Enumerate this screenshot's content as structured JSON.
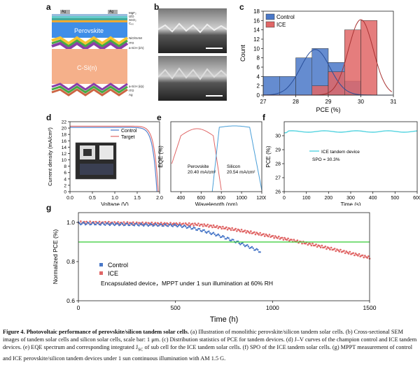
{
  "panels": {
    "a": {
      "letter": "a",
      "layers_top": [
        "MgF₂",
        "IZO",
        "SnO₂",
        "C₆₀"
      ],
      "perovskite": "Perovskite",
      "layers_mid": [
        "NiO/SAM",
        "ITO",
        "a-Si:H (i/n)"
      ],
      "csi": "C-Si(n)",
      "layers_bot": [
        "a-Si:H (i/p)",
        "ITO",
        "Ag"
      ],
      "contact": "Ag"
    },
    "b": {
      "letter": "b"
    },
    "c": {
      "letter": "c"
    },
    "d": {
      "letter": "d"
    },
    "e": {
      "letter": "e"
    },
    "f": {
      "letter": "f"
    },
    "g": {
      "letter": "g"
    }
  },
  "chart_data": [
    {
      "id": "c",
      "type": "bar",
      "title": "",
      "xlabel": "PCE (%)",
      "ylabel": "Count",
      "xlim": [
        27,
        31
      ],
      "ylim": [
        0,
        18
      ],
      "xticks": [
        "27",
        "28",
        "29",
        "30",
        "31"
      ],
      "yticks": [
        "0",
        "2",
        "4",
        "6",
        "8",
        "10",
        "12",
        "14",
        "16",
        "18"
      ],
      "bin_edges": [
        27,
        27.5,
        28,
        28.5,
        29,
        29.5,
        30,
        30.5
      ],
      "series": [
        {
          "name": "Control",
          "color": "#4a78c8",
          "values": [
            4,
            4,
            8,
            10,
            7,
            3,
            0
          ]
        },
        {
          "name": "ICE",
          "color": "#e06666",
          "values": [
            0,
            0,
            0,
            2,
            5,
            14,
            16
          ]
        }
      ],
      "fits": [
        {
          "name": "Control",
          "mean": 28.6,
          "sd": 0.45,
          "peak": 9.8
        },
        {
          "name": "ICE",
          "mean": 30.0,
          "sd": 0.38,
          "peak": 16.2
        }
      ]
    },
    {
      "id": "d",
      "type": "line",
      "xlabel": "Voltage (V)",
      "ylabel": "Current density (mA/cm²)",
      "xlim": [
        0,
        2.0
      ],
      "ylim": [
        0,
        22
      ],
      "xticks": [
        "0.0",
        "0.5",
        "1.0",
        "1.5",
        "2.0"
      ],
      "yticks": [
        "0",
        "2",
        "4",
        "6",
        "8",
        "10",
        "12",
        "14",
        "16",
        "18",
        "20",
        "22"
      ],
      "series": [
        {
          "name": "Control",
          "color": "#4a78c8",
          "jsc": 20.2,
          "voc": 1.94
        },
        {
          "name": "Target",
          "color": "#e06666",
          "jsc": 20.6,
          "voc": 1.97
        }
      ]
    },
    {
      "id": "e",
      "type": "line",
      "xlabel": "Wavelength (nm)",
      "ylabel": "EQE (%)",
      "xlim": [
        300,
        1200
      ],
      "ylim": [
        0,
        100
      ],
      "xticks": [
        "400",
        "600",
        "800",
        "1000",
        "1200"
      ],
      "series": [
        {
          "name": "Perovskite",
          "color": "#e06666"
        },
        {
          "name": "Silicon",
          "color": "#4a9fd8"
        }
      ],
      "annotations": [
        "Perovskite",
        "20.40 mA/cm²",
        "Silicon",
        "20.54 mA/cm²"
      ]
    },
    {
      "id": "f",
      "type": "line",
      "xlabel": "Time (s)",
      "ylabel": "PCE (%)",
      "xlim": [
        0,
        600
      ],
      "ylim": [
        26,
        31
      ],
      "xticks": [
        "0",
        "100",
        "200",
        "300",
        "400",
        "500",
        "600"
      ],
      "yticks": [
        "26",
        "27",
        "28",
        "29",
        "30"
      ],
      "series": [
        {
          "name": "ICE tandem device",
          "color": "#55d4e0",
          "value": 30.3
        }
      ],
      "annotations": [
        "SPO = 30.3%"
      ]
    },
    {
      "id": "g",
      "type": "scatter",
      "xlabel": "Time (h)",
      "ylabel": "Normalized PCE (%)",
      "xlim": [
        0,
        1500
      ],
      "ylim": [
        0.6,
        1.05
      ],
      "xticks": [
        "0",
        "500",
        "1000",
        "1500"
      ],
      "yticks": [
        "0.6",
        "0.8",
        "1.0"
      ],
      "series": [
        {
          "name": "Control",
          "color": "#4a78c8",
          "end_time": 940,
          "end_value": 0.85
        },
        {
          "name": "ICE",
          "color": "#e06666",
          "end_time": 1500,
          "end_value": 0.82
        }
      ],
      "reference_line": {
        "value": 0.9,
        "color": "#33cc33"
      },
      "annotations": [
        "Encapsulated device，MPPT under 1 sun illumination at 60% RH"
      ]
    }
  ],
  "caption": {
    "label": "Figure 4.",
    "title": "Photovoltaic performance of perovskite/silicon tandem solar cells.",
    "body": "(a) Illustration of monolithic perovskite/silicon tandem solar cells. (b) Cross-sectional SEM images of tandem solar cells and silicon solar cells, scale bar: 1 μm. (c) Distribution statistics of PCE for tandem devices. (d) J–V curves of the champion control and ICE tandem devices. (e) EQE spectrum and corresponding integrated J",
    "sub": "SC",
    "body2": " of sub cell for the ICE tandem solar cells. (f) SPO of the ICE tandem solar cells. (g) MPPT measurement of control and ICE perovskite/silicon tandem devices under 1 sun continuous illumination with AM 1.5 G."
  }
}
